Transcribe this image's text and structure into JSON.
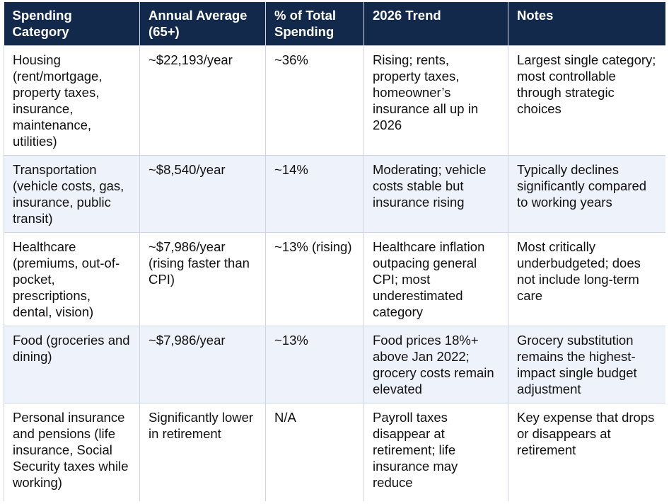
{
  "table": {
    "headers": [
      "Spending Category",
      "Annual Average (65+)",
      "% of Total Spending",
      "2026 Trend",
      "Notes"
    ],
    "rows": [
      {
        "category": "Housing (rent/mortgage, property taxes, insurance, maintenance, utilities)",
        "annual_average": "~$22,193/year",
        "percent_total": "~36%",
        "trend_2026": "Rising; rents, property taxes, homeowner’s insurance all up in 2026",
        "notes": "Largest single category; most controllable through strategic choices"
      },
      {
        "category": "Transportation (vehicle costs, gas, insurance, public transit)",
        "annual_average": "~$8,540/year",
        "percent_total": "~14%",
        "trend_2026": "Moderating; vehicle costs stable but insurance rising",
        "notes": "Typically declines significantly compared to working years"
      },
      {
        "category": "Healthcare (premiums, out-of-pocket, prescriptions, dental, vision)",
        "annual_average": "~$7,986/year (rising faster than CPI)",
        "percent_total": "~13% (rising)",
        "trend_2026": "Healthcare inflation outpacing general CPI; most underestimated category",
        "notes": "Most critically underbudgeted; does not include long-term care"
      },
      {
        "category": "Food (groceries and dining)",
        "annual_average": "~$7,986/year",
        "percent_total": "~13%",
        "trend_2026": "Food prices 18%+ above Jan 2022; grocery costs remain elevated",
        "notes": "Grocery substitution remains the highest-impact single budget adjustment"
      },
      {
        "category": "Personal insurance and pensions (life insurance, Social Security taxes while working)",
        "annual_average": "Significantly lower in retirement",
        "percent_total": "N/A",
        "trend_2026": "Payroll taxes disappear at retirement; life insurance may reduce",
        "notes": "Key expense that drops or disappears at retirement"
      }
    ]
  },
  "colors": {
    "header_bg": "#13294b",
    "header_text": "#ffffff",
    "alt_row_bg": "#eef3fb",
    "border": "#cfd6e2"
  }
}
